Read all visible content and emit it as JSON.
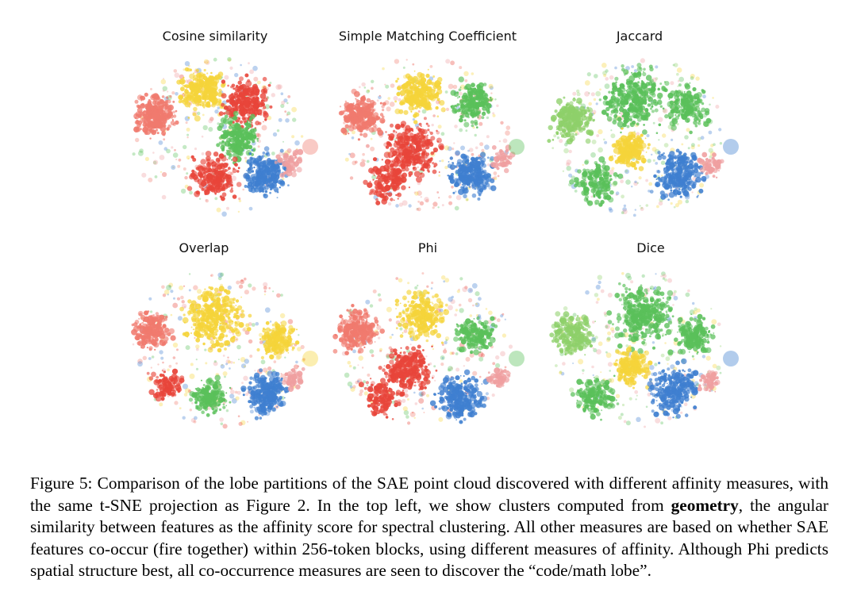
{
  "figure": {
    "panels": [
      {
        "title": "Cosine similarity",
        "palette": [
          "#f07a6e",
          "#f5d43a",
          "#e8453a",
          "#5ac05a",
          "#3f7fd0",
          "#ef9fa0"
        ]
      },
      {
        "title": "Simple Matching Coefficient",
        "palette": [
          "#f07a6e",
          "#f5d43a",
          "#e8453a",
          "#5ac05a",
          "#3f7fd0",
          "#ef9fa0"
        ]
      },
      {
        "title": "Jaccard",
        "palette": [
          "#8ed06a",
          "#5ac05a",
          "#f5d43a",
          "#3f7fd0",
          "#ef9fa0"
        ]
      },
      {
        "title": "Overlap",
        "palette": [
          "#f07a6e",
          "#f5d43a",
          "#e8453a",
          "#5ac05a",
          "#3f7fd0",
          "#ef9fa0"
        ]
      },
      {
        "title": "Phi",
        "palette": [
          "#f07a6e",
          "#f5d43a",
          "#e8453a",
          "#5ac05a",
          "#3f7fd0",
          "#ef9fa0"
        ]
      },
      {
        "title": "Dice",
        "palette": [
          "#8ed06a",
          "#5ac05a",
          "#f5d43a",
          "#3f7fd0",
          "#ef9fa0"
        ]
      }
    ]
  },
  "caption": {
    "part1": "Figure 5: Comparison of the lobe partitions of the SAE point cloud discovered with different affinity measures, with the same t-SNE projection as Figure 2. In the top left, we show clusters computed from ",
    "bold": "geometry",
    "part2": ", the angular similarity between features as the affinity score for spectral clustering. All other measures are based on whether SAE features co-occur (fire together) within 256-token blocks, using different measures of affinity. Although Phi predicts spatial structure best, all co-occurrence measures are seen to discover the “code/math lobe”."
  }
}
